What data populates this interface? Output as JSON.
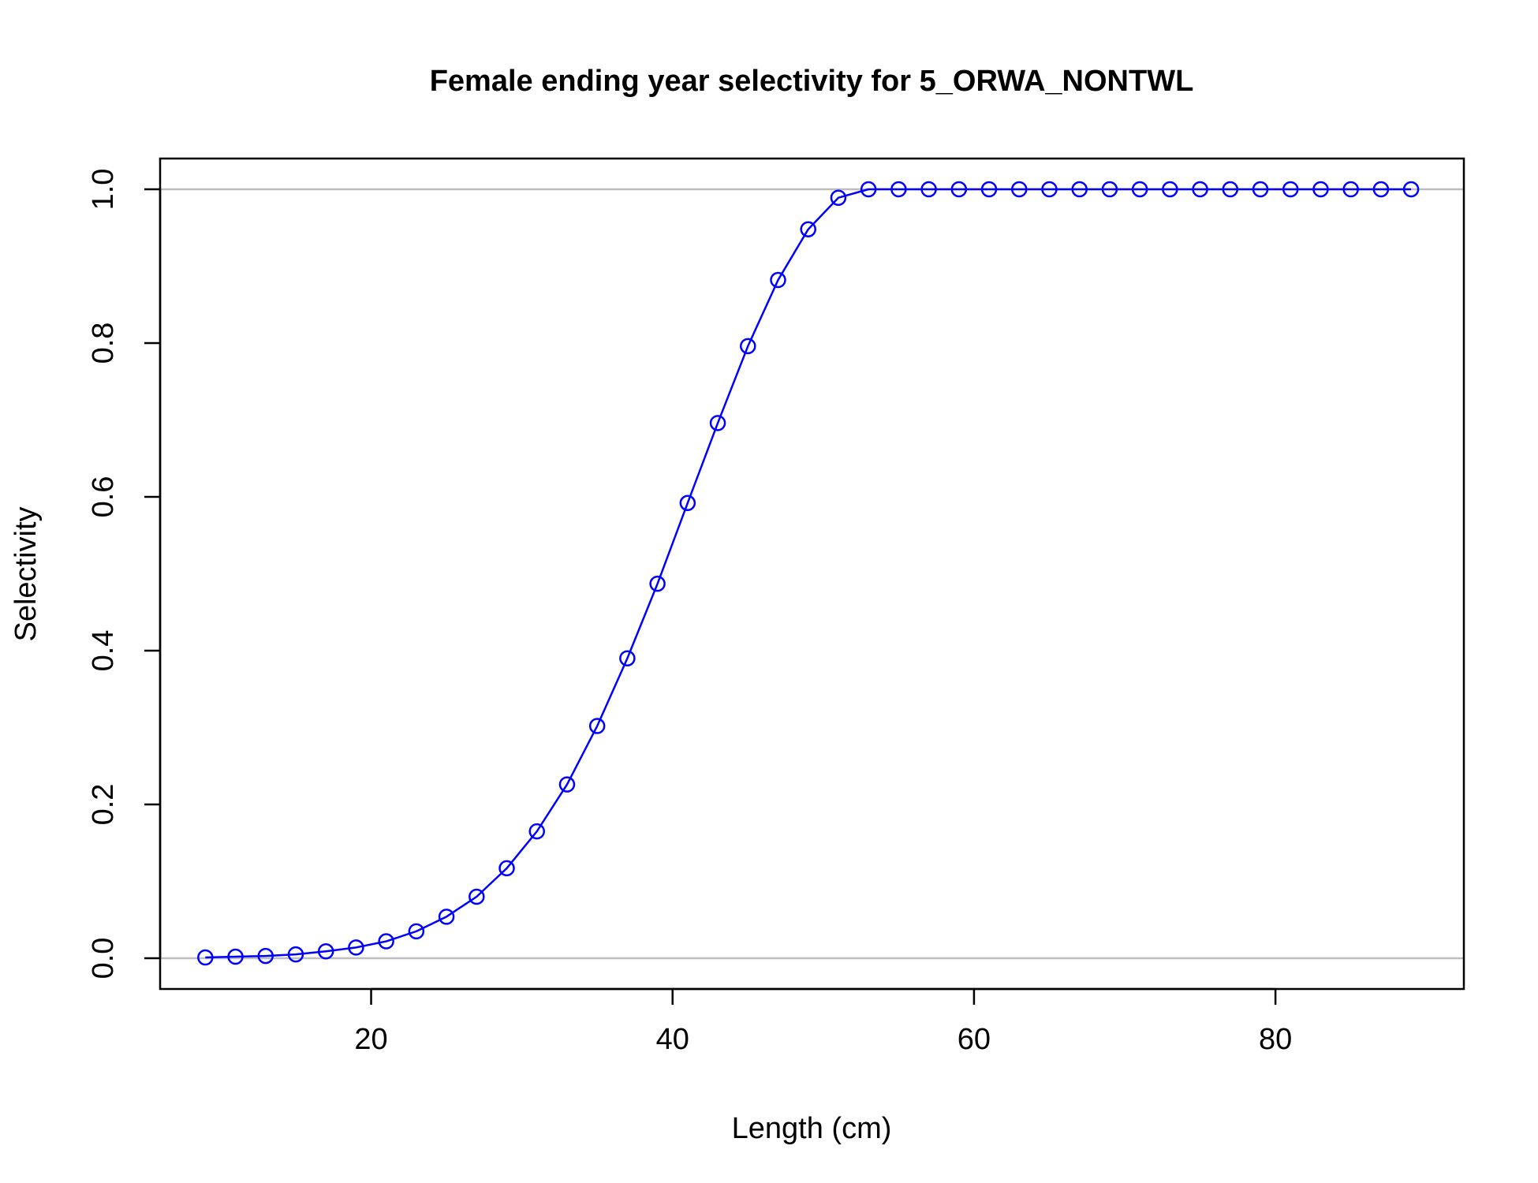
{
  "chart_data": {
    "type": "line",
    "title": "Female ending year selectivity for 5_ORWA_NONTWL",
    "xlabel": "Length (cm)",
    "ylabel": "Selectivity",
    "xlim": [
      6,
      92.5
    ],
    "ylim": [
      -0.04,
      1.04
    ],
    "x_ticks": [
      20,
      40,
      60,
      80
    ],
    "x_tick_labels": [
      "20",
      "40",
      "60",
      "80"
    ],
    "y_ticks": [
      0,
      0.2,
      0.4,
      0.6,
      0.8,
      1
    ],
    "y_tick_labels": [
      "0.0",
      "0.2",
      "0.4",
      "0.6",
      "0.8",
      "1.0"
    ],
    "reference_lines": [
      0,
      1
    ],
    "grid": false,
    "legend": "none",
    "colors": {
      "series": "#0000ff",
      "reference": "#bebebe",
      "axis": "#000000"
    },
    "series": [
      {
        "x": [
          9,
          11,
          13,
          15,
          17,
          19,
          21,
          23,
          25,
          27,
          29,
          31,
          33,
          35,
          37,
          39,
          41,
          43,
          45,
          47,
          49,
          51,
          53,
          55,
          57,
          59,
          61,
          63,
          65,
          67,
          69,
          71,
          73,
          75,
          77,
          79,
          81,
          83,
          85,
          87,
          89
        ],
        "values": [
          0.001,
          0.002,
          0.003,
          0.005,
          0.009,
          0.014,
          0.022,
          0.035,
          0.054,
          0.08,
          0.117,
          0.165,
          0.226,
          0.302,
          0.39,
          0.487,
          0.592,
          0.696,
          0.796,
          0.882,
          0.948,
          0.989,
          1.0,
          1.0,
          1.0,
          1.0,
          1.0,
          1.0,
          1.0,
          1.0,
          1.0,
          1.0,
          1.0,
          1.0,
          1.0,
          1.0,
          1.0,
          1.0,
          1.0,
          1.0,
          1.0
        ]
      }
    ]
  }
}
